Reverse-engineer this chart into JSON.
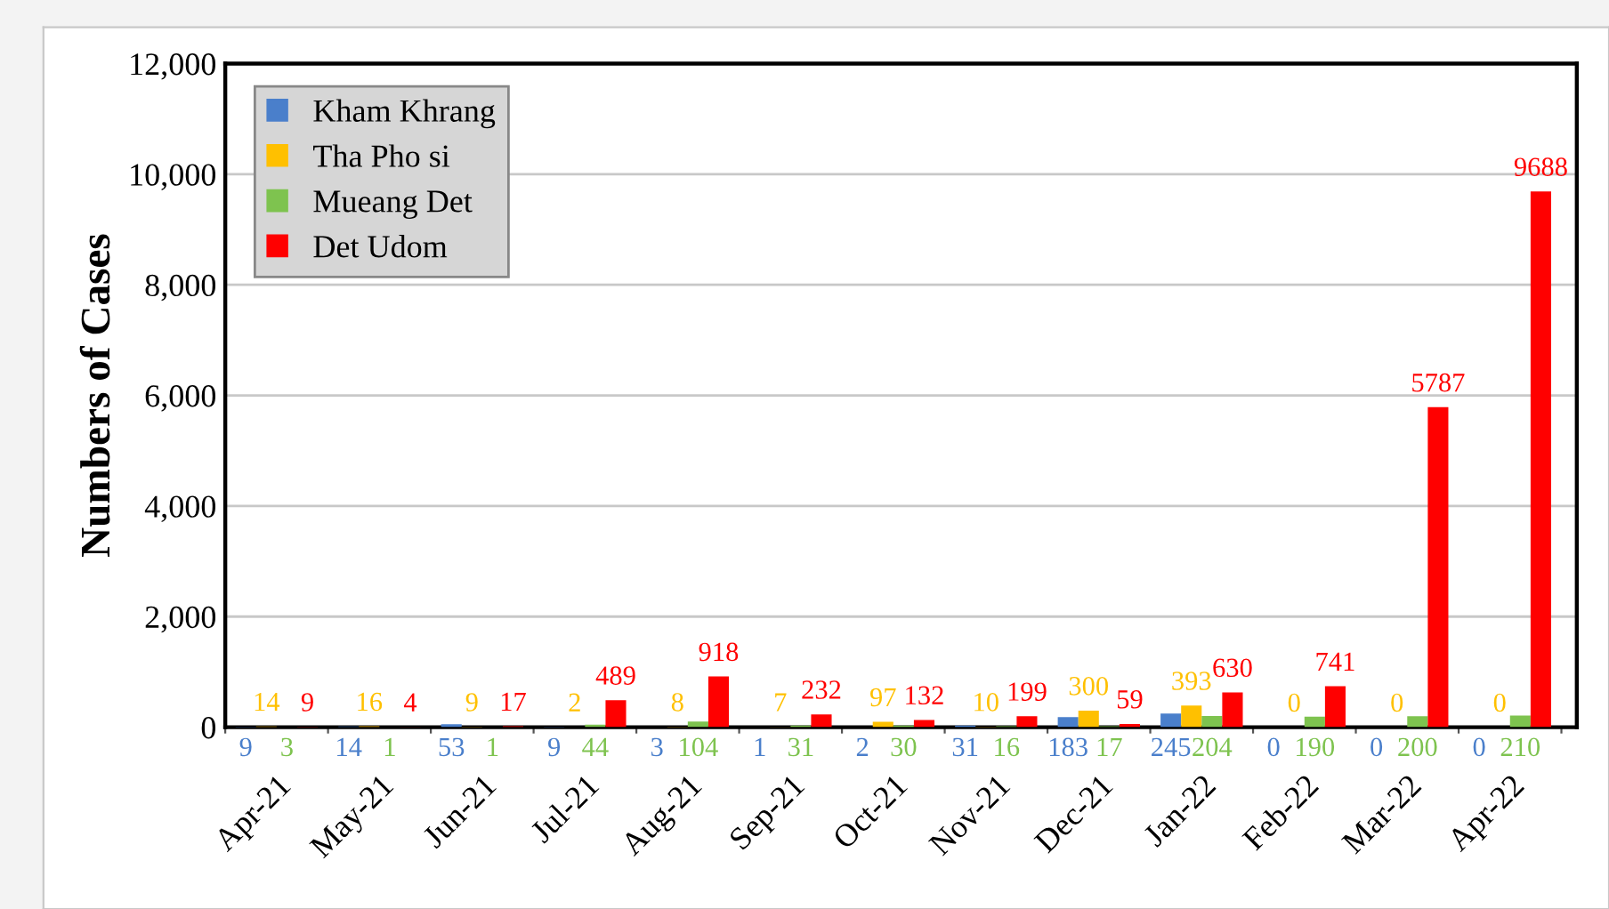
{
  "chart_data": {
    "type": "bar",
    "ylabel": "Numbers of Cases",
    "categories": [
      "Apr-21",
      "May-21",
      "Jun-21",
      "Jul-21",
      "Aug-21",
      "Sep-21",
      "Oct-21",
      "Nov-21",
      "Dec-21",
      "Jan-22",
      "Feb-22",
      "Mar-22",
      "Apr-22"
    ],
    "series": [
      {
        "name": "Kham Khrang",
        "color": "#4a7fcb",
        "values": [
          9,
          14,
          53,
          9,
          3,
          1,
          2,
          31,
          183,
          245,
          0,
          0,
          0
        ]
      },
      {
        "name": "Tha Pho si",
        "color": "#ffc000",
        "values": [
          14,
          16,
          9,
          2,
          8,
          7,
          97,
          10,
          300,
          393,
          0,
          0,
          0
        ]
      },
      {
        "name": "Mueang Det",
        "color": "#7ec34f",
        "values": [
          3,
          1,
          1,
          44,
          104,
          31,
          30,
          16,
          17,
          204,
          190,
          200,
          210
        ]
      },
      {
        "name": "Det Udom",
        "color": "#ff0000",
        "values": [
          9,
          4,
          17,
          489,
          918,
          232,
          132,
          199,
          59,
          630,
          741,
          5787,
          9688
        ]
      }
    ],
    "ylim": [
      0,
      12000
    ],
    "yticks": [
      {
        "value": 0,
        "label": "0"
      },
      {
        "value": 2000,
        "label": "2,000"
      },
      {
        "value": 4000,
        "label": "4,000"
      },
      {
        "value": 6000,
        "label": "6,000"
      },
      {
        "value": 8000,
        "label": "8,000"
      },
      {
        "value": 10000,
        "label": "10,000"
      },
      {
        "value": 12000,
        "label": "12,000"
      }
    ],
    "grid": "y",
    "legend": "top left",
    "data_labels": true
  }
}
